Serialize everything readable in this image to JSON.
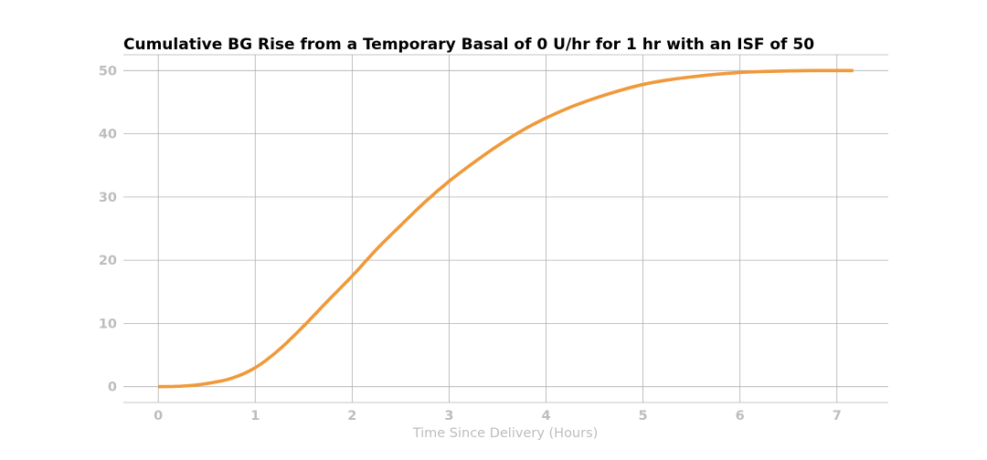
{
  "chart_data": {
    "type": "line",
    "title": "Cumulative BG Rise from a Temporary Basal of 0 U/hr for 1 hr with an ISF of 50",
    "xlabel": "Time Since Delivery (Hours)",
    "ylabel": "",
    "xlim": [
      -0.36,
      7.53
    ],
    "ylim": [
      -2.5,
      52.5
    ],
    "xticks": [
      0,
      1,
      2,
      3,
      4,
      5,
      6,
      7
    ],
    "yticks": [
      0,
      10,
      20,
      30,
      40,
      50
    ],
    "grid": true,
    "colors": {
      "line": "#F0993A",
      "grid": "#B0B0B0",
      "tick_text": "#BDBDBD",
      "title": "#000000"
    },
    "series": [
      {
        "x": [
          0,
          0.25,
          0.5,
          0.75,
          1.0,
          1.25,
          1.5,
          1.75,
          2.0,
          2.25,
          2.5,
          2.75,
          3.0,
          3.25,
          3.5,
          3.75,
          4.0,
          4.25,
          4.5,
          4.75,
          5.0,
          5.25,
          5.5,
          5.75,
          6.0,
          6.25,
          6.5,
          6.75,
          7.0,
          7.17
        ],
        "y": [
          0,
          0.1,
          0.5,
          1.3,
          3.0,
          5.9,
          9.6,
          13.6,
          17.5,
          21.7,
          25.5,
          29.2,
          32.5,
          35.4,
          38.1,
          40.5,
          42.5,
          44.2,
          45.6,
          46.8,
          47.8,
          48.5,
          49.0,
          49.4,
          49.7,
          49.85,
          49.95,
          50.0,
          50.0,
          50.0
        ]
      }
    ]
  }
}
